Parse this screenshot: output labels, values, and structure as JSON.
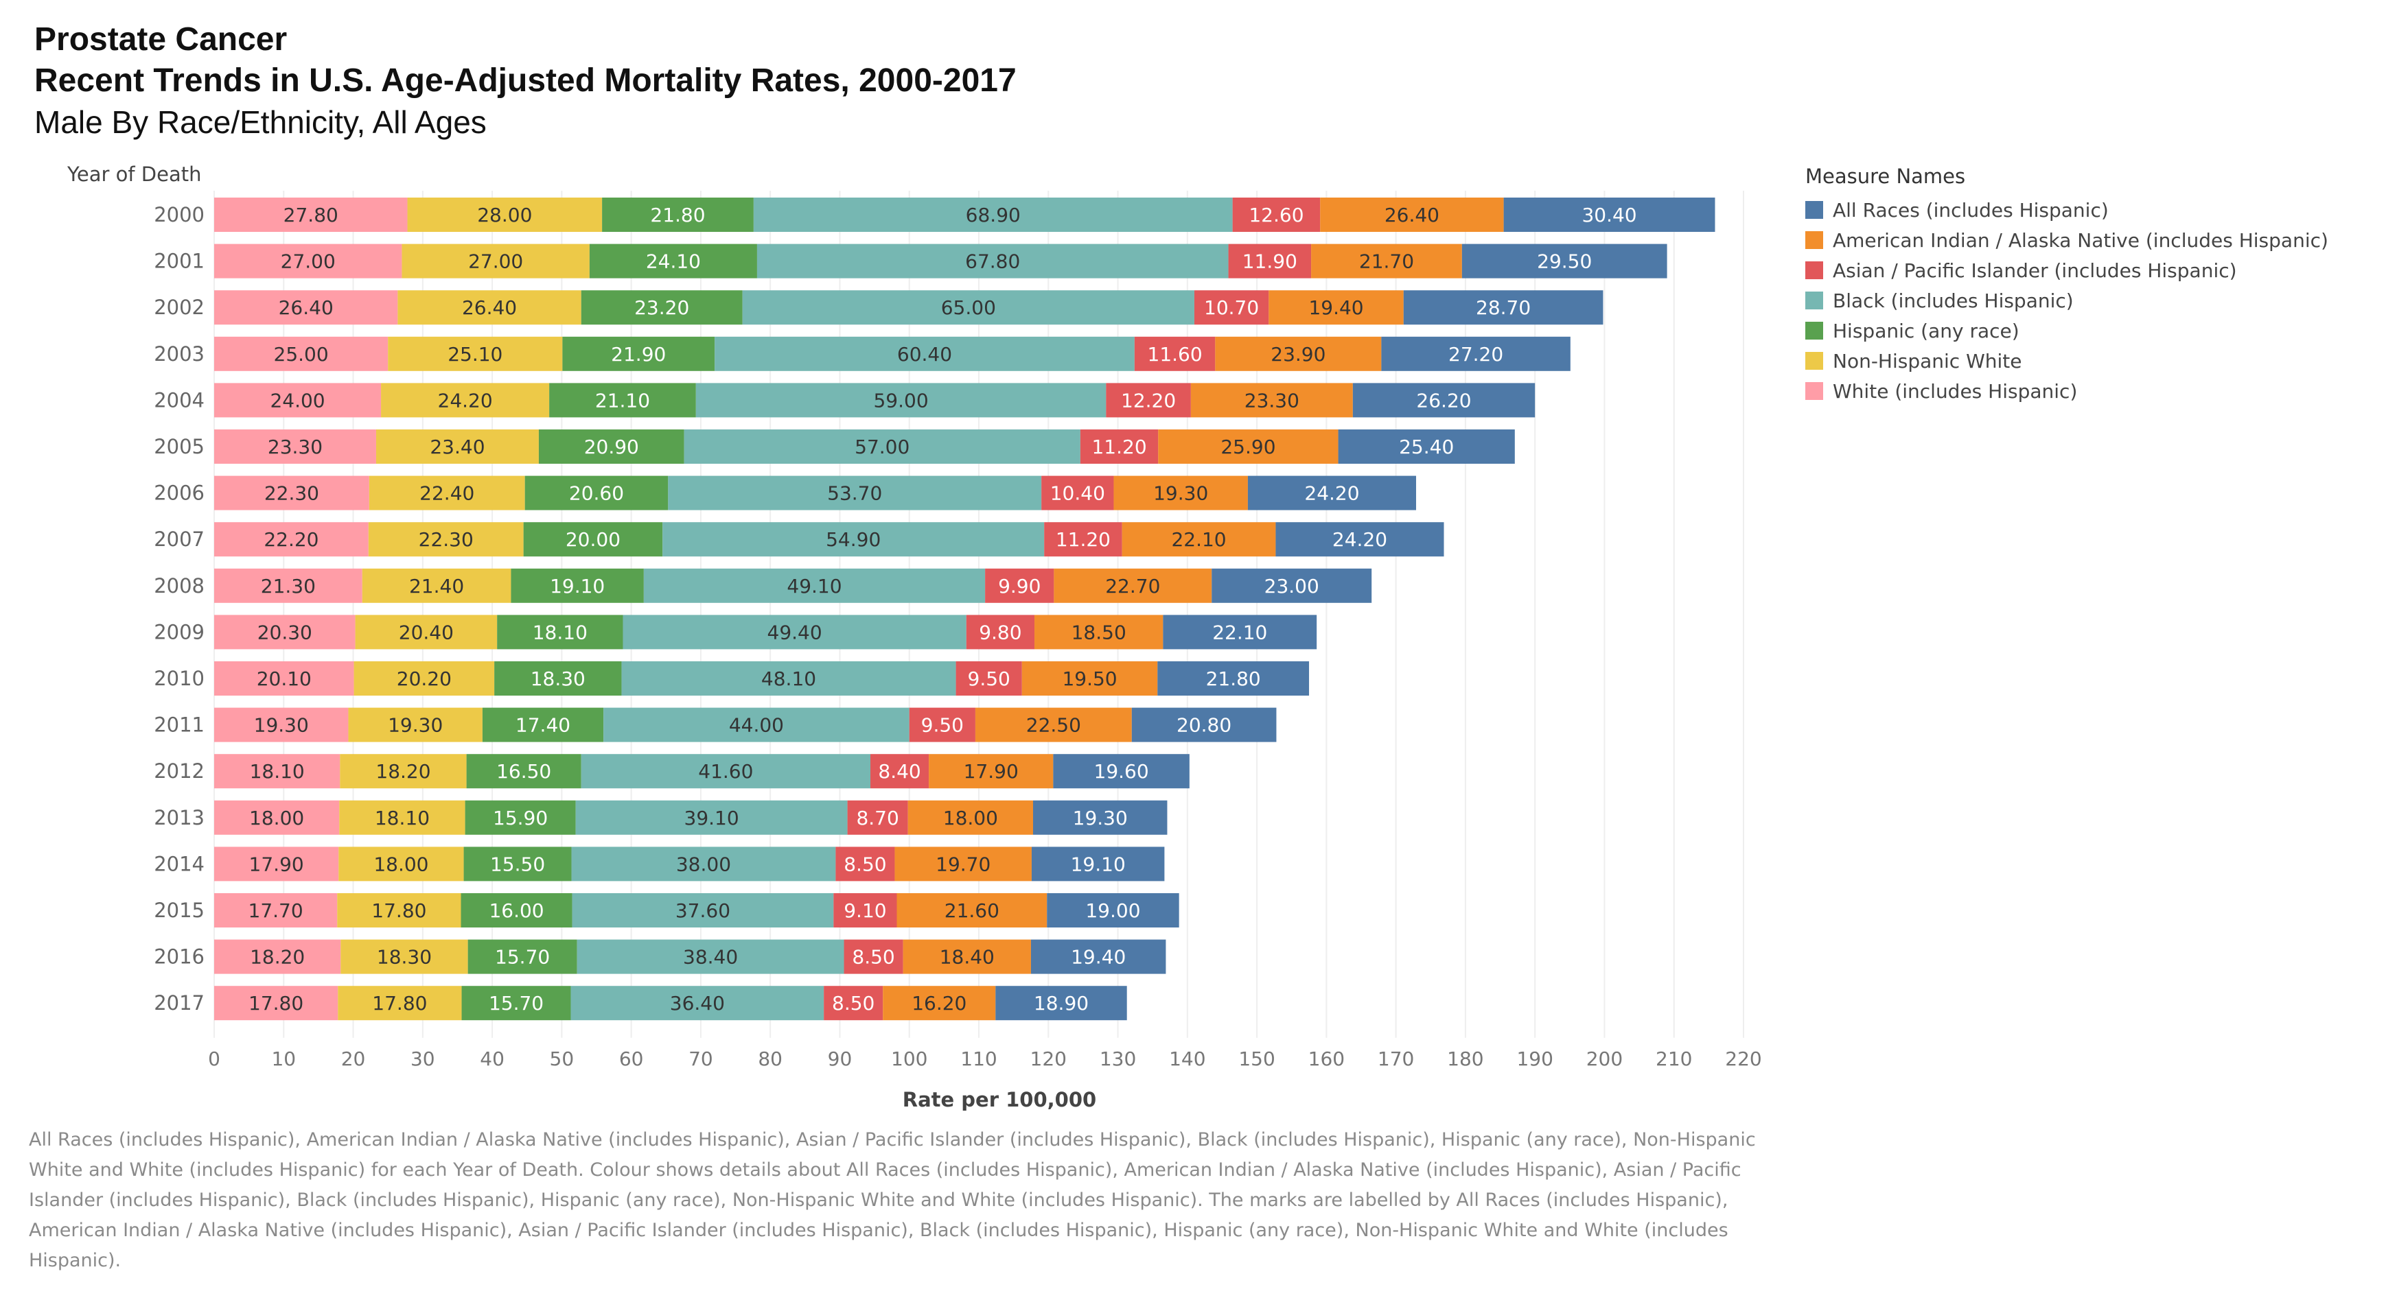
{
  "title": {
    "line1": "Prostate Cancer",
    "line2": "Recent Trends in U.S. Age-Adjusted Mortality Rates, 2000-2017",
    "line3": "Male By Race/Ethnicity, All Ages"
  },
  "legend": {
    "title": "Measure Names",
    "items": [
      {
        "label": "All Races (includes Hispanic)",
        "color": "#4e79a7"
      },
      {
        "label": "American Indian / Alaska Native (includes Hispanic)",
        "color": "#f28e2b"
      },
      {
        "label": "Asian / Pacific Islander (includes Hispanic)",
        "color": "#e15759"
      },
      {
        "label": "Black (includes Hispanic)",
        "color": "#76b7b2"
      },
      {
        "label": "Hispanic (any race)",
        "color": "#59a14f"
      },
      {
        "label": "Non-Hispanic White",
        "color": "#edc948"
      },
      {
        "label": "White (includes Hispanic)",
        "color": "#ff9da7"
      }
    ]
  },
  "footnote": "All Races (includes Hispanic), American Indian / Alaska Native (includes Hispanic), Asian / Pacific Islander (includes Hispanic), Black (includes Hispanic), Hispanic (any race), Non-Hispanic White and White (includes Hispanic) for each Year of Death.  Colour shows details about All Races (includes Hispanic), American Indian / Alaska Native (includes Hispanic), Asian / Pacific Islander (includes Hispanic), Black (includes Hispanic), Hispanic (any race), Non-Hispanic White and White (includes Hispanic).  The marks are labelled by All Races (includes Hispanic), American Indian / Alaska Native (includes Hispanic), Asian / Pacific Islander (includes Hispanic), Black (includes Hispanic), Hispanic (any race), Non-Hispanic White and White (includes Hispanic).",
  "chart_data": {
    "type": "bar",
    "orientation": "horizontal",
    "stacked": true,
    "ylabel": "Year of Death",
    "xlabel": "Rate per 100,000",
    "xlim": [
      0,
      220
    ],
    "xticks": [
      0,
      10,
      20,
      30,
      40,
      50,
      60,
      70,
      80,
      90,
      100,
      110,
      120,
      130,
      140,
      150,
      160,
      170,
      180,
      190,
      200,
      210,
      220
    ],
    "categories": [
      "2000",
      "2001",
      "2002",
      "2003",
      "2004",
      "2005",
      "2006",
      "2007",
      "2008",
      "2009",
      "2010",
      "2011",
      "2012",
      "2013",
      "2014",
      "2015",
      "2016",
      "2017"
    ],
    "series": [
      {
        "name": "White (includes Hispanic)",
        "color": "#ff9da7",
        "label_color": "#333333",
        "values": [
          27.8,
          27.0,
          26.4,
          25.0,
          24.0,
          23.3,
          22.3,
          22.2,
          21.3,
          20.3,
          20.1,
          19.3,
          18.1,
          18.0,
          17.9,
          17.7,
          18.2,
          17.8
        ],
        "labels": [
          "27.80",
          "27.00",
          "26.40",
          "25.00",
          "24.00",
          "23.30",
          "22.30",
          "22.20",
          "21.30",
          "20.30",
          "20.10",
          "19.30",
          "18.10",
          "18.00",
          "17.90",
          "17.70",
          "18.20",
          "17.80"
        ]
      },
      {
        "name": "Non-Hispanic White",
        "color": "#edc948",
        "label_color": "#333333",
        "values": [
          28.0,
          27.0,
          26.4,
          25.1,
          24.2,
          23.4,
          22.4,
          22.3,
          21.4,
          20.4,
          20.2,
          19.3,
          18.2,
          18.1,
          18.0,
          17.8,
          18.3,
          17.8
        ],
        "labels": [
          "28.00",
          "27.00",
          "26.40",
          "25.10",
          "24.20",
          "23.40",
          "22.40",
          "22.30",
          "21.40",
          "20.40",
          "20.20",
          "19.30",
          "18.20",
          "18.10",
          "18.00",
          "17.80",
          "18.30",
          "17.80"
        ]
      },
      {
        "name": "Hispanic (any race)",
        "color": "#59a14f",
        "label_color": "#ffffff",
        "values": [
          21.8,
          24.1,
          23.2,
          21.9,
          21.1,
          20.9,
          20.6,
          20.0,
          19.1,
          18.1,
          18.3,
          17.4,
          16.5,
          15.9,
          15.5,
          16.0,
          15.7,
          15.7
        ],
        "labels": [
          "21.80",
          "24.10",
          "23.20",
          "21.90",
          "21.10",
          "20.90",
          "20.60",
          "20.00",
          "19.10",
          "18.10",
          "18.30",
          "17.40",
          "16.50",
          "15.90",
          "15.50",
          "16.00",
          "15.70",
          "15.70"
        ]
      },
      {
        "name": "Black (includes Hispanic)",
        "color": "#76b7b2",
        "label_color": "#333333",
        "values": [
          68.9,
          67.8,
          65.0,
          60.4,
          59.0,
          57.0,
          53.7,
          54.9,
          49.1,
          49.4,
          48.1,
          44.0,
          41.6,
          39.1,
          38.0,
          37.6,
          38.4,
          36.4
        ],
        "labels": [
          "68.90",
          "67.80",
          "65.00",
          "60.40",
          "59.00",
          "57.00",
          "53.70",
          "54.90",
          "49.10",
          "49.40",
          "48.10",
          "44.00",
          "41.60",
          "39.10",
          "38.00",
          "37.60",
          "38.40",
          "36.40"
        ]
      },
      {
        "name": "Asian / Pacific Islander (includes Hispanic)",
        "color": "#e15759",
        "label_color": "#ffffff",
        "values": [
          12.6,
          11.9,
          10.7,
          11.6,
          12.2,
          11.2,
          10.4,
          11.2,
          9.9,
          9.8,
          9.5,
          9.5,
          8.4,
          8.7,
          8.5,
          9.1,
          8.5,
          8.5
        ],
        "labels": [
          "12.60",
          "11.90",
          "10.70",
          "11.60",
          "12.20",
          "11.20",
          "10.40",
          "11.20",
          "9.90",
          "9.80",
          "9.50",
          "9.50",
          "8.40",
          "8.70",
          "8.50",
          "9.10",
          "8.50",
          "8.50"
        ]
      },
      {
        "name": "American Indian / Alaska Native (includes Hispanic)",
        "color": "#f28e2b",
        "label_color": "#333333",
        "values": [
          26.4,
          21.7,
          19.4,
          23.9,
          23.3,
          25.9,
          19.3,
          22.1,
          22.7,
          18.5,
          19.5,
          22.5,
          17.9,
          18.0,
          19.7,
          21.6,
          18.4,
          16.2
        ],
        "labels": [
          "26.40",
          "21.70",
          "19.40",
          "23.90",
          "23.30",
          "25.90",
          "19.30",
          "22.10",
          "22.70",
          "18.50",
          "19.50",
          "22.50",
          "17.90",
          "18.00",
          "19.70",
          "21.60",
          "18.40",
          "16.20"
        ]
      },
      {
        "name": "All Races (includes Hispanic)",
        "color": "#4e79a7",
        "label_color": "#ffffff",
        "values": [
          30.4,
          29.5,
          28.7,
          27.2,
          26.2,
          25.4,
          24.2,
          24.2,
          23.0,
          22.1,
          21.8,
          20.8,
          19.6,
          19.3,
          19.1,
          19.0,
          19.4,
          18.9
        ],
        "labels": [
          "30.40",
          "29.50",
          "28.70",
          "27.20",
          "26.20",
          "25.40",
          "24.20",
          "24.20",
          "23.00",
          "22.10",
          "21.80",
          "20.80",
          "19.60",
          "19.30",
          "19.10",
          "19.00",
          "19.40",
          "18.90"
        ]
      }
    ]
  }
}
